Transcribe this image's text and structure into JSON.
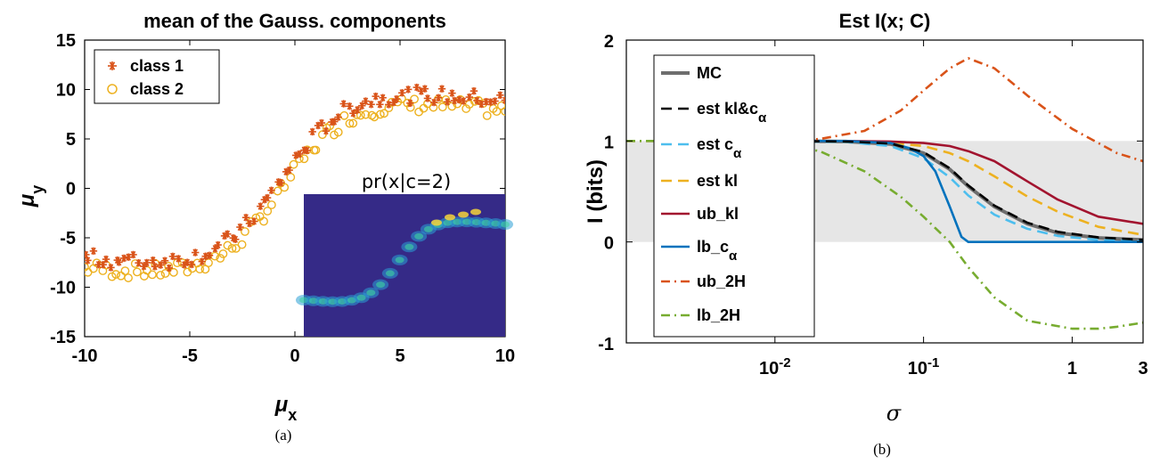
{
  "chart_data": [
    {
      "type": "scatter",
      "title": "mean of the Gauss. components",
      "xlabel": "μx",
      "ylabel": "μy",
      "xlim": [
        -10,
        10
      ],
      "ylim": [
        -15,
        15
      ],
      "xticks": [
        "-10",
        "-5",
        "0",
        "5",
        "10"
      ],
      "yticks": [
        "15",
        "10",
        "5",
        "0",
        "-5",
        "-10",
        "-15"
      ],
      "legend_position": "top-left",
      "series": [
        {
          "name": "class 1",
          "marker": "asterisk",
          "color": "#d95319"
        },
        {
          "name": "class 2",
          "marker": "circle",
          "color": "#edb120"
        }
      ],
      "inset": {
        "title": "pr(x|c=2)",
        "type": "heatmap",
        "background": "#352a87"
      },
      "caption": "(a)"
    },
    {
      "type": "line",
      "title": "Est I(x; C)",
      "xlabel": "σ",
      "ylabel": "I (bits)",
      "xscale": "log",
      "xlim": [
        0.001,
        3
      ],
      "ylim": [
        -1,
        2
      ],
      "xticks": [
        "10-2",
        "10-1",
        "1",
        "3"
      ],
      "yticks": [
        "2",
        "1",
        "0",
        "-1"
      ],
      "shaded_band": [
        0,
        1
      ],
      "legend_position": "top-left",
      "series": [
        {
          "name": "MC",
          "color": "#6e6e6e",
          "style": "solid",
          "x": [
            0.01,
            0.03,
            0.06,
            0.1,
            0.15,
            0.2,
            0.3,
            0.5,
            0.8,
            1.5,
            3
          ],
          "y": [
            1.0,
            0.995,
            0.97,
            0.88,
            0.72,
            0.55,
            0.35,
            0.18,
            0.09,
            0.04,
            0.02
          ]
        },
        {
          "name": "est kl&cα",
          "color": "#000000",
          "style": "dashed",
          "x": [
            0.01,
            0.03,
            0.06,
            0.1,
            0.15,
            0.2,
            0.3,
            0.5,
            0.8,
            1.5,
            3
          ],
          "y": [
            1.0,
            0.995,
            0.975,
            0.89,
            0.73,
            0.56,
            0.36,
            0.19,
            0.1,
            0.045,
            0.02
          ]
        },
        {
          "name": "est cα",
          "color": "#4dbeee",
          "style": "dashed",
          "x": [
            0.01,
            0.03,
            0.06,
            0.1,
            0.15,
            0.2,
            0.3,
            0.5,
            0.8,
            1.5,
            3
          ],
          "y": [
            1.0,
            0.99,
            0.95,
            0.83,
            0.64,
            0.46,
            0.27,
            0.13,
            0.06,
            0.02,
            0.01
          ]
        },
        {
          "name": "est kl",
          "color": "#edb120",
          "style": "dashed",
          "x": [
            0.01,
            0.03,
            0.06,
            0.1,
            0.15,
            0.2,
            0.3,
            0.5,
            0.8,
            1.5,
            3
          ],
          "y": [
            1.0,
            0.995,
            0.98,
            0.95,
            0.88,
            0.8,
            0.65,
            0.45,
            0.3,
            0.15,
            0.07
          ]
        },
        {
          "name": "ub_kl",
          "color": "#a2142f",
          "style": "solid",
          "x": [
            0.01,
            0.03,
            0.06,
            0.1,
            0.15,
            0.2,
            0.3,
            0.5,
            0.8,
            1.5,
            3
          ],
          "y": [
            1.0,
            1.0,
            0.995,
            0.98,
            0.95,
            0.9,
            0.8,
            0.6,
            0.42,
            0.25,
            0.18
          ]
        },
        {
          "name": "lb_cα",
          "color": "#0072bd",
          "style": "solid",
          "x": [
            0.01,
            0.03,
            0.06,
            0.08,
            0.1,
            0.12,
            0.15,
            0.18,
            0.2,
            0.3,
            1,
            3
          ],
          "y": [
            1.0,
            1.0,
            0.98,
            0.93,
            0.85,
            0.7,
            0.35,
            0.05,
            0.0,
            0.0,
            0.0,
            0.0
          ]
        },
        {
          "name": "ub_2H",
          "color": "#d95319",
          "style": "dashdot",
          "x": [
            0.001,
            0.005,
            0.01,
            0.02,
            0.04,
            0.07,
            0.1,
            0.15,
            0.2,
            0.3,
            0.5,
            1,
            2,
            3
          ],
          "y": [
            1.0,
            1.0,
            1.0,
            1.02,
            1.1,
            1.3,
            1.5,
            1.72,
            1.82,
            1.72,
            1.45,
            1.12,
            0.88,
            0.8
          ]
        },
        {
          "name": "lb_2H",
          "color": "#77ac30",
          "style": "dashdot",
          "x": [
            0.001,
            0.005,
            0.01,
            0.02,
            0.04,
            0.07,
            0.1,
            0.15,
            0.2,
            0.3,
            0.5,
            1,
            1.5,
            2,
            3
          ],
          "y": [
            1.0,
            1.0,
            0.98,
            0.9,
            0.7,
            0.45,
            0.25,
            0.0,
            -0.25,
            -0.55,
            -0.78,
            -0.86,
            -0.86,
            -0.84,
            -0.8
          ]
        }
      ],
      "caption": "(b)"
    }
  ]
}
